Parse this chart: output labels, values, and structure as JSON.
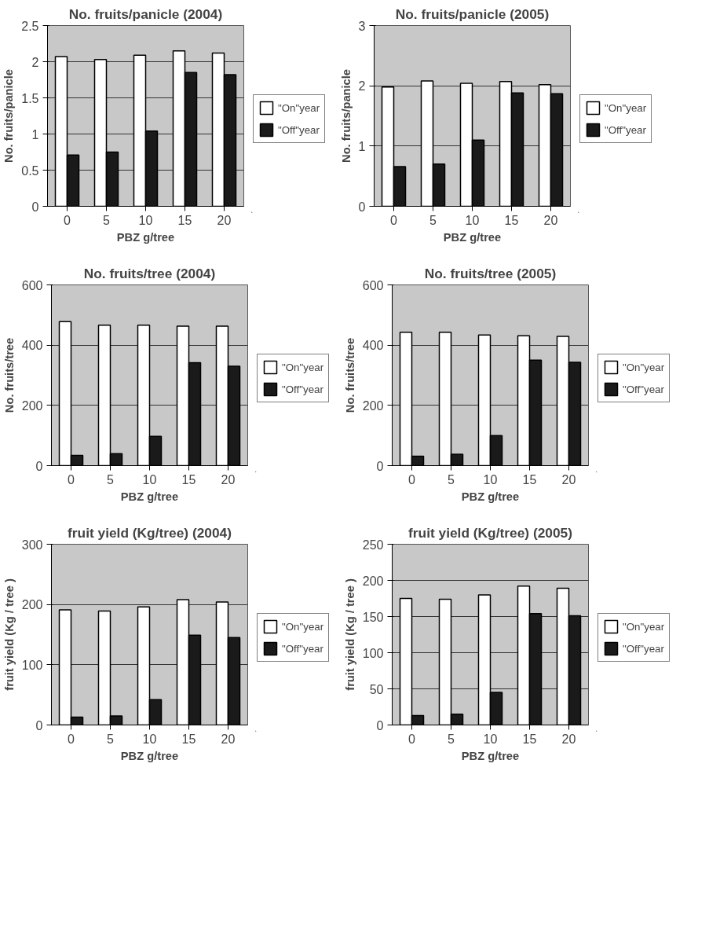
{
  "chart_data": [
    {
      "type": "bar",
      "title": "No. fruits/panicle (2004)",
      "xlabel": "PBZ g/tree",
      "ylabel": "No. fruits/panicle",
      "categories": [
        "0",
        "5",
        "10",
        "15",
        "20"
      ],
      "ylim": [
        0,
        2.5
      ],
      "yticks": [
        {
          "value": 0,
          "label": "0"
        },
        {
          "value": 0.5,
          "label": "0.5"
        },
        {
          "value": 1,
          "label": "1"
        },
        {
          "value": 1.5,
          "label": "1.5"
        },
        {
          "value": 2,
          "label": "2"
        },
        {
          "value": 2.5,
          "label": "2.5"
        }
      ],
      "grid": "y",
      "legend": "right",
      "series": [
        {
          "name": "\"On\"year",
          "color": "#ffffff",
          "values": [
            2.07,
            2.03,
            2.09,
            2.15,
            2.12
          ]
        },
        {
          "name": "\"Off\"year",
          "color": "#1a1a1a",
          "values": [
            0.71,
            0.75,
            1.04,
            1.85,
            1.82
          ]
        }
      ]
    },
    {
      "type": "bar",
      "title": "No. fruits/panicle (2005)",
      "xlabel": "PBZ g/tree",
      "ylabel": "No. fruits/panicle",
      "categories": [
        "0",
        "5",
        "10",
        "15",
        "20"
      ],
      "ylim": [
        0,
        3
      ],
      "yticks": [
        0,
        1,
        2,
        3
      ],
      "grid": "y",
      "legend": "right",
      "series": [
        {
          "name": "\"On\"year",
          "color": "#ffffff",
          "values": [
            1.98,
            2.08,
            2.04,
            2.07,
            2.02
          ]
        },
        {
          "name": "\"Off\"year",
          "color": "#1a1a1a",
          "values": [
            0.66,
            0.7,
            1.1,
            1.88,
            1.87
          ]
        }
      ]
    },
    {
      "type": "bar",
      "title": "No. fruits/tree (2004)",
      "xlabel": "PBZ g/tree",
      "ylabel": "No. fruits/tree",
      "categories": [
        "0",
        "5",
        "10",
        "15",
        "20"
      ],
      "ylim": [
        0,
        600
      ],
      "yticks": [
        0,
        200,
        400,
        600
      ],
      "grid": "y",
      "legend": "right",
      "series": [
        {
          "name": "\"On\"year",
          "color": "#ffffff",
          "values": [
            478,
            466,
            466,
            463,
            463
          ]
        },
        {
          "name": "\"Off\"year",
          "color": "#1a1a1a",
          "values": [
            34,
            40,
            97,
            342,
            330
          ]
        }
      ]
    },
    {
      "type": "bar",
      "title": "No. fruits/tree (2005)",
      "xlabel": "PBZ g/tree",
      "ylabel": "No. fruits/tree",
      "categories": [
        "0",
        "5",
        "10",
        "15",
        "20"
      ],
      "ylim": [
        0,
        600
      ],
      "yticks": [
        0,
        200,
        400,
        600
      ],
      "grid": "y",
      "legend": "right",
      "series": [
        {
          "name": "\"On\"year",
          "color": "#ffffff",
          "values": [
            443,
            443,
            434,
            431,
            429
          ]
        },
        {
          "name": "\"Off\"year",
          "color": "#1a1a1a",
          "values": [
            31,
            38,
            100,
            350,
            343
          ]
        }
      ]
    },
    {
      "type": "bar",
      "title": "fruit yield (Kg/tree) (2004)",
      "xlabel": "PBZ g/tree",
      "ylabel": "fruit yield (Kg / tree )",
      "categories": [
        "0",
        "5",
        "10",
        "15",
        "20"
      ],
      "ylim": [
        0,
        300
      ],
      "yticks": [
        0,
        100,
        200,
        300
      ],
      "grid": "y",
      "legend": "right",
      "series": [
        {
          "name": "\"On\"year",
          "color": "#ffffff",
          "values": [
            191,
            189,
            196,
            208,
            204
          ]
        },
        {
          "name": "\"Off\"year",
          "color": "#1a1a1a",
          "values": [
            13,
            15,
            42,
            149,
            145
          ]
        }
      ]
    },
    {
      "type": "bar",
      "title": "fruit yield (Kg/tree) (2005)",
      "xlabel": "PBZ g/tree",
      "ylabel": "fruit yield (Kg / tree )",
      "categories": [
        "0",
        "5",
        "10",
        "15",
        "20"
      ],
      "ylim": [
        0,
        250
      ],
      "yticks": [
        0,
        50,
        100,
        150,
        200,
        250
      ],
      "grid": "y",
      "legend": "right",
      "series": [
        {
          "name": "\"On\"year",
          "color": "#ffffff",
          "values": [
            175,
            174,
            180,
            192,
            189
          ]
        },
        {
          "name": "\"Off\"year",
          "color": "#1a1a1a",
          "values": [
            13,
            15,
            45,
            154,
            151
          ]
        }
      ]
    }
  ]
}
